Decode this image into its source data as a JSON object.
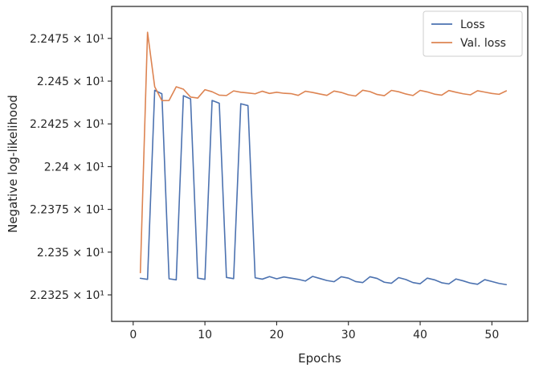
{
  "chart_data": {
    "type": "line",
    "title": "",
    "xlabel": "Epochs",
    "ylabel": "Negative log-likelihood",
    "xlim": [
      -3,
      55
    ],
    "ylim": [
      22.3095,
      22.4937
    ],
    "xticks": [
      0,
      10,
      20,
      30,
      40,
      50
    ],
    "xtick_labels": [
      "0",
      "10",
      "20",
      "30",
      "40",
      "50"
    ],
    "yticks": [
      22.325,
      22.35,
      22.375,
      22.4,
      22.425,
      22.45,
      22.475
    ],
    "ytick_labels": [
      "2.2325 × 10¹",
      "2.235 × 10¹",
      "2.2375 × 10¹",
      "2.24 × 10¹",
      "2.2425 × 10¹",
      "2.245 × 10¹",
      "2.2475 × 10¹"
    ],
    "grid": false,
    "legend_position": "top-right",
    "x": [
      1,
      2,
      3,
      4,
      5,
      6,
      7,
      8,
      9,
      10,
      11,
      12,
      13,
      14,
      15,
      16,
      17,
      18,
      19,
      20,
      21,
      22,
      23,
      24,
      25,
      26,
      27,
      28,
      29,
      30,
      31,
      32,
      33,
      34,
      35,
      36,
      37,
      38,
      39,
      40,
      41,
      42,
      43,
      44,
      45,
      46,
      47,
      48,
      49,
      50,
      51,
      52
    ],
    "series": [
      {
        "name": "Loss",
        "color": "#4c72b0",
        "values": [
          22.3347,
          22.3341,
          22.4447,
          22.4426,
          22.3344,
          22.3338,
          22.4415,
          22.4396,
          22.3348,
          22.3341,
          22.4387,
          22.4371,
          22.3352,
          22.3345,
          22.4368,
          22.4357,
          22.335,
          22.3342,
          22.3357,
          22.3344,
          22.3355,
          22.3348,
          22.3341,
          22.3331,
          22.3358,
          22.3346,
          22.3334,
          22.3327,
          22.3356,
          22.3348,
          22.3328,
          22.3322,
          22.3356,
          22.3346,
          22.3324,
          22.3318,
          22.3351,
          22.334,
          22.3322,
          22.3315,
          22.3348,
          22.3338,
          22.3321,
          22.3314,
          22.3343,
          22.3332,
          22.3319,
          22.3312,
          22.3339,
          22.3328,
          22.3317,
          22.331
        ]
      },
      {
        "name": "Val. loss",
        "color": "#dd8452",
        "values": [
          22.338,
          22.4786,
          22.4467,
          22.4386,
          22.4387,
          22.4467,
          22.4453,
          22.4407,
          22.4401,
          22.445,
          22.4438,
          22.4418,
          22.4416,
          22.4443,
          22.4435,
          22.4431,
          22.4426,
          22.4441,
          22.4428,
          22.4435,
          22.4429,
          22.4427,
          22.4417,
          22.4441,
          22.4434,
          22.4425,
          22.4417,
          22.4442,
          22.4434,
          22.442,
          22.4413,
          22.4447,
          22.4439,
          22.4422,
          22.4415,
          22.4446,
          22.4438,
          22.4425,
          22.4416,
          22.4446,
          22.4437,
          22.4424,
          22.4418,
          22.4445,
          22.4435,
          22.4426,
          22.442,
          22.4444,
          22.4436,
          22.4428,
          22.4423,
          22.4443
        ]
      }
    ]
  }
}
